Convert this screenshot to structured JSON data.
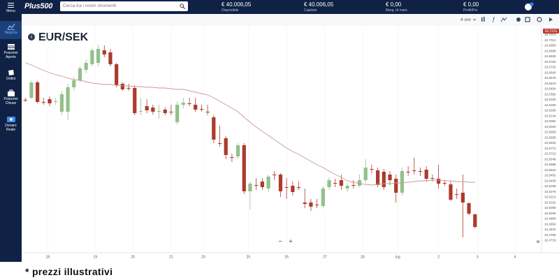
{
  "header": {
    "menu": "Menu",
    "logo": "Plus500",
    "search_placeholder": "Cerca tra i nostri strumenti",
    "stats": [
      {
        "value": "€ 40.006,05",
        "label": "Disponibile"
      },
      {
        "value": "€ 40.006,05",
        "label": "Capitale"
      },
      {
        "value": "€ 0,00",
        "label": "Marg. di mant."
      },
      {
        "value": "€ 0,00",
        "label": "Profit/Per"
      }
    ]
  },
  "sidebar": {
    "items": [
      "Negozia",
      "Posizioni Aperte",
      "Ordini",
      "Posizioni Chiuse",
      "Denaro Reale"
    ]
  },
  "toolbar": {
    "interval": "4 ore"
  },
  "chart_data": {
    "type": "candlestick",
    "title": "EUR/SEK",
    "price_tag": "10,7231",
    "up_color": "#93c08a",
    "down_color": "#ad3a2c",
    "open": [
      10.633,
      10.6354,
      10.653,
      10.6306,
      10.6338,
      10.6306,
      10.6194,
      10.6194,
      10.6474,
      10.6554,
      10.6674,
      10.6738,
      10.6754,
      10.6898,
      10.6874,
      10.6738,
      10.6514,
      10.6466,
      10.6466,
      10.6194,
      10.6258,
      10.6242,
      10.6194,
      10.6218,
      10.6194,
      10.6074,
      10.6274,
      10.629,
      10.6274,
      10.6226,
      10.6194,
      10.613,
      10.5834,
      10.589,
      10.5674,
      10.5682,
      10.581,
      10.5282,
      10.5354,
      10.5394,
      10.5314,
      10.5474,
      10.5474,
      10.533,
      10.5346,
      10.533,
      10.5154,
      10.5154,
      10.513,
      10.5114,
      10.533,
      10.5378,
      10.541,
      10.5314,
      10.5354,
      10.5346,
      10.541,
      10.5538,
      10.5522,
      10.5506,
      10.5474,
      10.5426,
      10.5266,
      10.5506,
      10.5522,
      10.5514,
      10.553,
      10.5434,
      10.5426,
      10.5378,
      10.5362,
      10.525,
      10.5266,
      10.5146,
      10.5018
    ],
    "high": [
      10.6354,
      10.6554,
      10.6546,
      10.6354,
      10.637,
      10.6354,
      10.6434,
      10.6514,
      10.6594,
      10.6714,
      10.6794,
      10.693,
      10.6962,
      10.6954,
      10.6914,
      10.6754,
      10.653,
      10.6514,
      10.6498,
      10.6354,
      10.6338,
      10.6274,
      10.6274,
      10.6242,
      10.6274,
      10.6314,
      10.6354,
      10.6354,
      10.6354,
      10.6274,
      10.6274,
      10.6154,
      10.6034,
      10.5914,
      10.5714,
      10.5834,
      10.5834,
      10.5394,
      10.5434,
      10.5434,
      10.5474,
      10.5514,
      10.549,
      10.5434,
      10.5394,
      10.5394,
      10.5314,
      10.5194,
      10.5194,
      10.5338,
      10.5442,
      10.5426,
      10.5474,
      10.5378,
      10.541,
      10.5474,
      10.565,
      10.5586,
      10.5554,
      10.5538,
      10.5514,
      10.5474,
      10.5554,
      10.557,
      10.5666,
      10.5554,
      10.557,
      10.5474,
      10.5586,
      10.541,
      10.5394,
      10.5314,
      10.5474,
      10.5154,
      10.5026
    ],
    "low": [
      10.6306,
      10.6338,
      10.629,
      10.6274,
      10.6258,
      10.6274,
      10.6154,
      10.6098,
      10.6434,
      10.653,
      10.6634,
      10.6714,
      10.6714,
      10.6818,
      10.6714,
      10.6474,
      10.6434,
      10.6434,
      10.6154,
      10.6154,
      10.6178,
      10.6162,
      10.6114,
      10.6154,
      10.6154,
      10.605,
      10.6234,
      10.6258,
      10.6194,
      10.6194,
      10.6154,
      10.5834,
      10.5794,
      10.565,
      10.5618,
      10.565,
      10.525,
      10.5074,
      10.5298,
      10.5298,
      10.5274,
      10.541,
      10.5218,
      10.5194,
      10.5234,
      10.5298,
      10.509,
      10.5058,
      10.509,
      10.509,
      10.5298,
      10.533,
      10.5298,
      10.5274,
      10.5314,
      10.533,
      10.5378,
      10.549,
      10.533,
      10.5298,
      10.5354,
      10.5154,
      10.5234,
      10.5458,
      10.5474,
      10.5458,
      10.5394,
      10.5394,
      10.5314,
      10.5346,
      10.517,
      10.5194,
      10.4754,
      10.501,
      10.4858
    ],
    "close": [
      10.6322,
      10.653,
      10.6306,
      10.6298,
      10.629,
      10.6314,
      10.6394,
      10.6474,
      10.6554,
      10.669,
      10.6754,
      10.6898,
      10.6914,
      10.685,
      10.6738,
      10.6498,
      10.645,
      10.6458,
      10.6178,
      10.6202,
      10.621,
      10.6194,
      10.6202,
      10.6178,
      10.6186,
      10.6274,
      10.6298,
      10.6282,
      10.6218,
      10.6218,
      10.6186,
      10.5874,
      10.5826,
      10.5698,
      10.5666,
      10.581,
      10.5282,
      10.537,
      10.5346,
      10.533,
      10.545,
      10.5466,
      10.5282,
      10.5322,
      10.5274,
      10.5322,
      10.5138,
      10.5106,
      10.5122,
      10.5314,
      10.541,
      10.537,
      10.5346,
      10.5346,
      10.5346,
      10.541,
      10.5554,
      10.553,
      10.5354,
      10.533,
      10.541,
      10.5266,
      10.5514,
      10.5498,
      10.5514,
      10.5506,
      10.5426,
      10.5426,
      10.537,
      10.537,
      10.5186,
      10.5242,
      10.5154,
      10.5026,
      10.4874
    ],
    "moving_average": {
      "color": "#c99a9a",
      "values": [
        10.6754,
        10.673,
        10.6698,
        10.6666,
        10.6642,
        10.6618,
        10.6602,
        10.6578,
        10.6562,
        10.6554,
        10.6538,
        10.6522,
        10.6514,
        10.6506,
        10.6506,
        10.6498,
        10.649,
        10.649,
        10.6482,
        10.6482,
        10.6474,
        10.6474,
        10.6466,
        10.6466,
        10.6458,
        10.645,
        10.645,
        10.6434,
        10.6418,
        10.6402,
        10.6386,
        10.6354,
        10.6314,
        10.6274,
        10.6234,
        10.6194,
        10.613,
        10.6074,
        10.6018,
        10.597,
        10.5922,
        10.5874,
        10.5826,
        10.5778,
        10.5738,
        10.5706,
        10.5666,
        10.5626,
        10.5586,
        10.5554,
        10.5514,
        10.5474,
        10.5442,
        10.5402,
        10.5386,
        10.537,
        10.5362,
        10.5354,
        10.5362,
        10.537,
        10.537,
        10.5378,
        10.5378,
        10.5386,
        10.5394,
        10.5402,
        10.5402,
        10.541,
        10.541,
        10.5402,
        10.5402,
        10.5394,
        10.5394,
        10.5386,
        10.5386
      ]
    },
    "xlim": [
      -0.6,
      83.8
    ],
    "xticks": [
      {
        "value": 3.7,
        "label": "18"
      },
      {
        "value": 11.5,
        "label": "19"
      },
      {
        "value": 17.7,
        "label": "20"
      },
      {
        "value": 24,
        "label": "21"
      },
      {
        "value": 29.3,
        "label": "23"
      },
      {
        "value": 36.7,
        "label": "25"
      },
      {
        "value": 43,
        "label": "26"
      },
      {
        "value": 49.3,
        "label": "27"
      },
      {
        "value": 55.5,
        "label": "28"
      },
      {
        "value": 61.3,
        "label": "lug"
      },
      {
        "value": 68,
        "label": "2"
      },
      {
        "value": 74.4,
        "label": "3"
      },
      {
        "value": 80.6,
        "label": "4"
      }
    ],
    "ylim": [
      10.4594,
      10.717
    ],
    "yticks": [
      {
        "value": 10.7074,
        "label": "10,7074"
      },
      {
        "value": 10.7012,
        "label": "10,7012"
      },
      {
        "value": 10.695,
        "label": "10,6950"
      },
      {
        "value": 10.6888,
        "label": "10,6888"
      },
      {
        "value": 10.6826,
        "label": "10,6826"
      },
      {
        "value": 10.6764,
        "label": "10,6764"
      },
      {
        "value": 10.6702,
        "label": "10,6702"
      },
      {
        "value": 10.664,
        "label": "10,6640"
      },
      {
        "value": 10.6578,
        "label": "10,6578"
      },
      {
        "value": 10.6516,
        "label": "10,6516"
      },
      {
        "value": 10.6454,
        "label": "10,6454"
      },
      {
        "value": 10.6392,
        "label": "10,6392"
      },
      {
        "value": 10.633,
        "label": "10,6330"
      },
      {
        "value": 10.6268,
        "label": "10,6268"
      },
      {
        "value": 10.6206,
        "label": "10,6206"
      },
      {
        "value": 10.6144,
        "label": "10,6144"
      },
      {
        "value": 10.6082,
        "label": "10,6082"
      },
      {
        "value": 10.602,
        "label": "10,6020"
      },
      {
        "value": 10.5958,
        "label": "10,5958"
      },
      {
        "value": 10.5896,
        "label": "10,5896"
      },
      {
        "value": 10.5834,
        "label": "10,5834"
      },
      {
        "value": 10.5772,
        "label": "10,5772"
      },
      {
        "value": 10.571,
        "label": "10,5710"
      },
      {
        "value": 10.5648,
        "label": "10,5648"
      },
      {
        "value": 10.5586,
        "label": "10,5586"
      },
      {
        "value": 10.5524,
        "label": "10,5524"
      },
      {
        "value": 10.5462,
        "label": "10,5462"
      },
      {
        "value": 10.54,
        "label": "10,5400"
      },
      {
        "value": 10.5338,
        "label": "10,5338"
      },
      {
        "value": 10.5276,
        "label": "10,5276"
      },
      {
        "value": 10.5214,
        "label": "10,5214"
      },
      {
        "value": 10.5152,
        "label": "10,5152"
      },
      {
        "value": 10.509,
        "label": "10,5090"
      },
      {
        "value": 10.5028,
        "label": "10,5028"
      },
      {
        "value": 10.4966,
        "label": "10,4966"
      },
      {
        "value": 10.4904,
        "label": "10,4904"
      },
      {
        "value": 10.4842,
        "label": "10,4842"
      },
      {
        "value": 10.478,
        "label": "10,4780"
      },
      {
        "value": 10.4718,
        "label": "10,4718"
      }
    ],
    "grid": true
  },
  "zoom": {
    "out": "−",
    "in": "+"
  },
  "scroll": "»",
  "footnote": "* prezzi illustrativi"
}
